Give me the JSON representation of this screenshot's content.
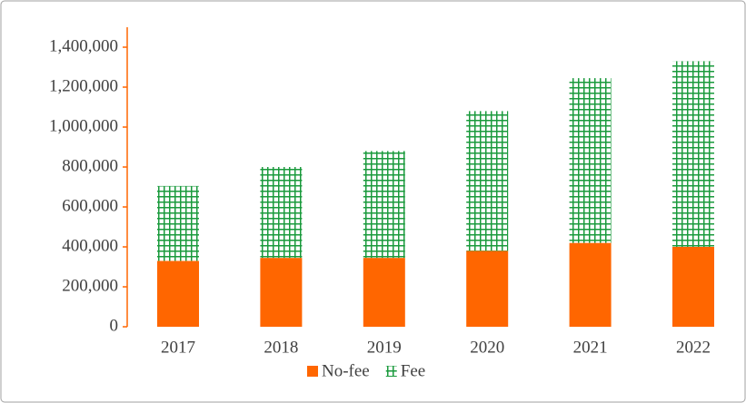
{
  "chart_data": {
    "type": "stacked_bar",
    "categories": [
      "2017",
      "2018",
      "2019",
      "2020",
      "2021",
      "2022"
    ],
    "series": [
      {
        "name": "No-fee",
        "color": "#ff6600",
        "values": [
          330000,
          345000,
          345000,
          380000,
          420000,
          400000
        ]
      },
      {
        "name": "Fee",
        "color": "#1a9a3c",
        "values": [
          375000,
          455000,
          535000,
          700000,
          825000,
          930000
        ]
      }
    ],
    "ylim": [
      0,
      1400000
    ],
    "yticks": [
      0,
      {
        "value": 200000,
        "label": "200,000"
      },
      {
        "value": 400000,
        "label": "400,000"
      },
      {
        "value": 600000,
        "label": "600,000"
      },
      {
        "value": 800000,
        "label": "800,000"
      },
      {
        "value": 1000000,
        "label": "1,000,000"
      },
      {
        "value": 1200000,
        "label": "1,200,000"
      },
      {
        "value": 1400000,
        "label": "1,400,000"
      }
    ],
    "legend": "bottom"
  }
}
